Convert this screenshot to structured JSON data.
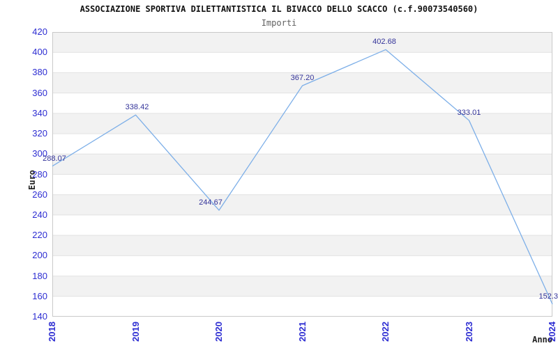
{
  "header": {
    "title": "ASSOCIAZIONE SPORTIVA DILETTANTISTICA IL BIVACCO DELLO SCACCO (c.f.90073540560)",
    "subtitle": "Importi"
  },
  "chart_data": {
    "type": "line",
    "title": "ASSOCIAZIONE SPORTIVA DILETTANTISTICA IL BIVACCO DELLO SCACCO (c.f.90073540560)",
    "subtitle": "Importi",
    "x": [
      2018,
      2019,
      2020,
      2021,
      2022,
      2023,
      2024
    ],
    "values": [
      288.07,
      338.42,
      244.67,
      367.2,
      402.68,
      333.01,
      152.3
    ],
    "point_labels": [
      "288.07",
      "338.42",
      "244.67",
      "367.20",
      "402.68",
      "333.01",
      "152.3"
    ],
    "xlabel": "Anno",
    "ylabel": "Euro",
    "ylim": [
      140,
      420
    ],
    "ytick_step": 20,
    "grid": "horizontal-alternating-bands",
    "legend": "none",
    "colors": {
      "line": "#7dafe8",
      "tick_labels": "#2d2dd2",
      "point_labels": "#333399",
      "band_gray": "#f2f2f2",
      "gridline": "#e2e2e2",
      "plot_border": "#c9c9c9"
    }
  }
}
